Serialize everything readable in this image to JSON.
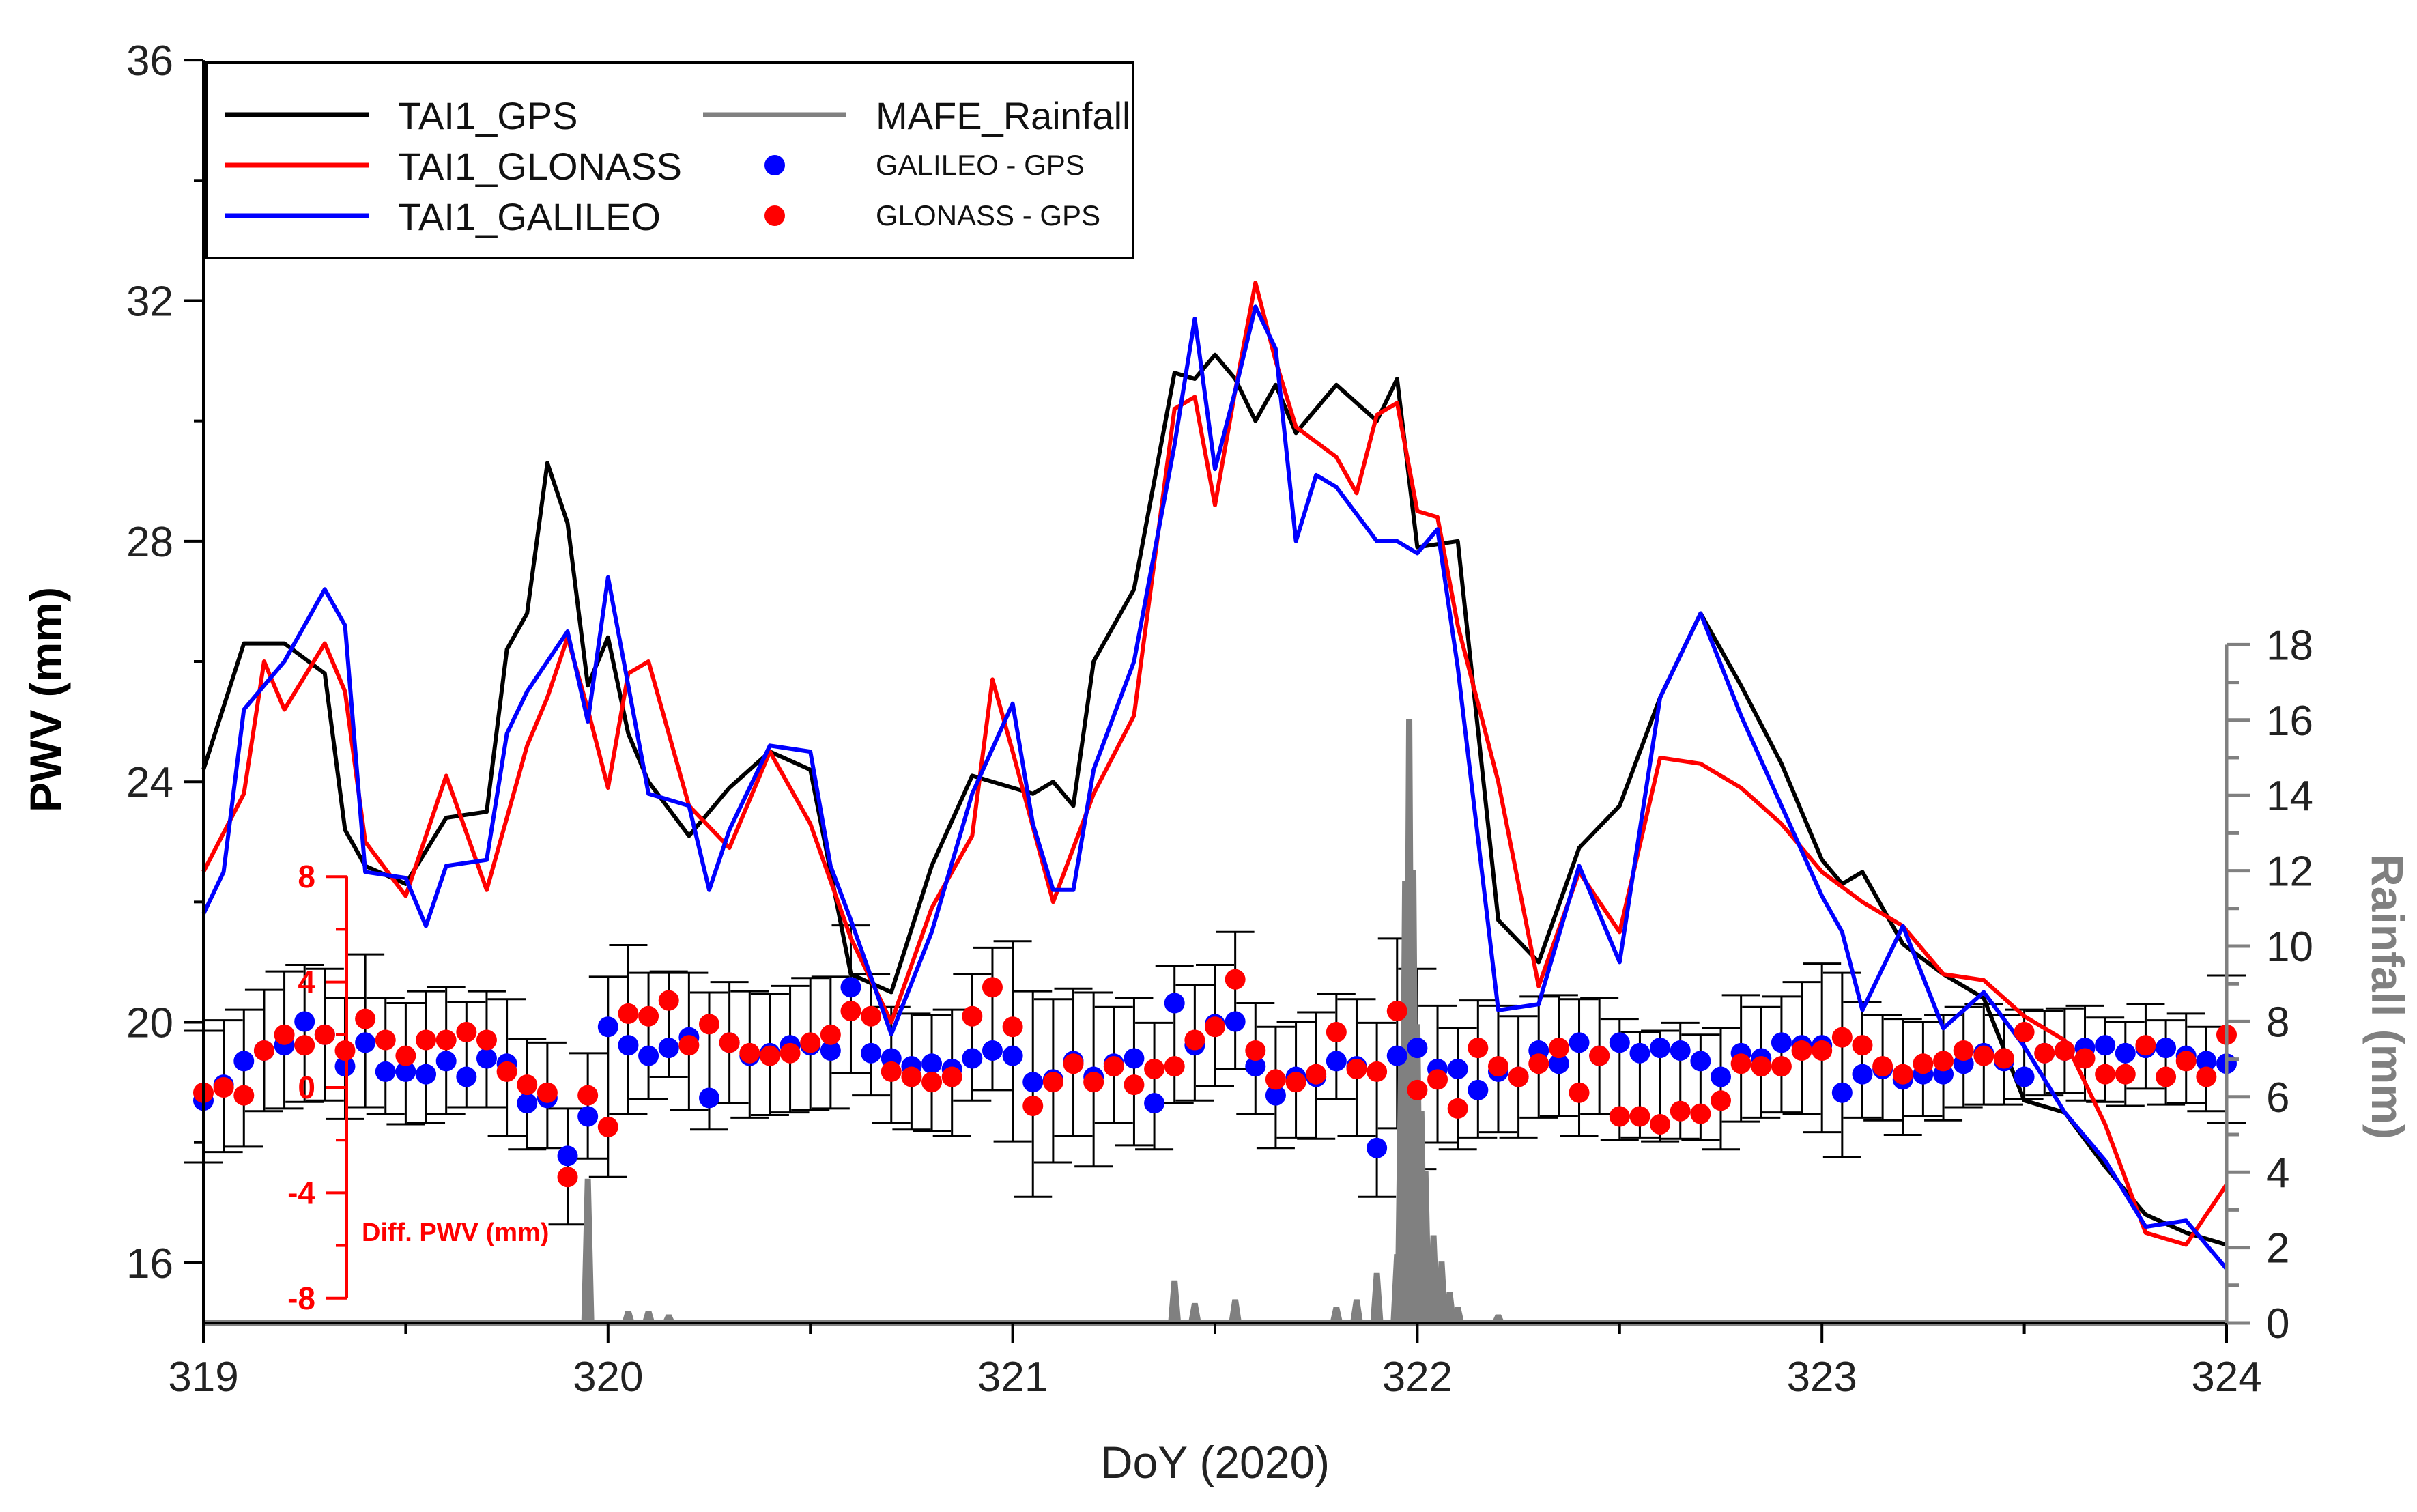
{
  "chart_data": {
    "type": "line",
    "xlabel": "DoY (2020)",
    "ylabel": "PWV (mm)",
    "y2label": "Rainfall (mm)",
    "y3label": "Diff. PWV (mm)",
    "xlim": [
      319,
      324
    ],
    "ylim": [
      15,
      36
    ],
    "y2lim": [
      0,
      18
    ],
    "y3range": [
      -8,
      8
    ],
    "x_ticks": [
      319,
      320,
      321,
      322,
      323,
      324
    ],
    "y_ticks": [
      16,
      20,
      24,
      28,
      32,
      36
    ],
    "y2_ticks": [
      0,
      2,
      4,
      6,
      8,
      10,
      12,
      14,
      16,
      18
    ],
    "y3_ticks": [
      -8,
      -4,
      0,
      4,
      8
    ],
    "legend_position": "top-left",
    "colors": {
      "gps": "#000000",
      "glonass": "#ff0000",
      "galileo": "#0000ff",
      "rain": "#808080",
      "diff_gal": "#0000ff",
      "diff_glo": "#ff0000"
    },
    "series": [
      {
        "name": "TAI1_GPS",
        "kind": "line",
        "color": "#000000",
        "x": [
          319.0,
          319.1,
          319.2,
          319.3,
          319.35,
          319.4,
          319.5,
          319.6,
          319.7,
          319.75,
          319.8,
          319.85,
          319.9,
          319.95,
          320.0,
          320.05,
          320.1,
          320.2,
          320.3,
          320.4,
          320.5,
          320.6,
          320.7,
          320.8,
          320.9,
          321.0,
          321.05,
          321.1,
          321.15,
          321.2,
          321.3,
          321.4,
          321.45,
          321.5,
          321.55,
          321.6,
          321.65,
          321.7,
          321.8,
          321.9,
          321.95,
          322.0,
          322.1,
          322.2,
          322.3,
          322.4,
          322.5,
          322.6,
          322.7,
          322.8,
          322.9,
          323.0,
          323.05,
          323.1,
          323.2,
          323.3,
          323.4,
          323.5,
          323.6,
          323.7,
          323.8,
          323.9,
          324.0
        ],
        "values": [
          24.2,
          26.3,
          26.3,
          25.8,
          23.2,
          22.6,
          22.3,
          23.4,
          23.5,
          26.2,
          26.8,
          29.3,
          28.3,
          25.6,
          26.4,
          24.8,
          24.0,
          23.1,
          23.9,
          24.5,
          24.2,
          20.8,
          20.5,
          22.6,
          24.1,
          23.9,
          23.8,
          24.0,
          23.6,
          26.0,
          27.2,
          30.8,
          30.7,
          31.1,
          30.7,
          30.0,
          30.6,
          29.8,
          30.6,
          30.0,
          30.7,
          27.9,
          28.0,
          21.7,
          21.0,
          22.9,
          23.6,
          25.4,
          26.8,
          25.6,
          24.3,
          22.7,
          22.3,
          22.5,
          21.3,
          20.8,
          20.4,
          18.7,
          18.5,
          17.6,
          16.8,
          16.5,
          16.3
        ]
      },
      {
        "name": "TAI1_GLONASS",
        "kind": "line",
        "color": "#ff0000",
        "x": [
          319.0,
          319.1,
          319.15,
          319.2,
          319.3,
          319.35,
          319.4,
          319.5,
          319.6,
          319.7,
          319.8,
          319.85,
          319.9,
          319.95,
          320.0,
          320.05,
          320.1,
          320.2,
          320.3,
          320.4,
          320.5,
          320.6,
          320.7,
          320.8,
          320.9,
          320.95,
          321.0,
          321.1,
          321.2,
          321.3,
          321.4,
          321.45,
          321.5,
          321.55,
          321.6,
          321.65,
          321.7,
          321.8,
          321.85,
          321.9,
          321.95,
          322.0,
          322.05,
          322.1,
          322.2,
          322.3,
          322.4,
          322.5,
          322.6,
          322.7,
          322.8,
          322.9,
          323.0,
          323.1,
          323.2,
          323.3,
          323.4,
          323.5,
          323.6,
          323.7,
          323.8,
          323.9,
          324.0
        ],
        "values": [
          22.5,
          23.8,
          26.0,
          25.2,
          26.3,
          25.5,
          23.0,
          22.1,
          24.1,
          22.2,
          24.6,
          25.4,
          26.4,
          25.2,
          23.9,
          25.8,
          26.0,
          23.6,
          22.9,
          24.5,
          23.3,
          21.4,
          20.0,
          21.9,
          23.1,
          25.7,
          24.5,
          22.0,
          23.8,
          25.1,
          30.2,
          30.4,
          28.6,
          30.5,
          32.3,
          31.0,
          29.9,
          29.4,
          28.8,
          30.1,
          30.3,
          28.5,
          28.4,
          26.6,
          24.0,
          20.6,
          22.5,
          21.5,
          24.4,
          24.3,
          23.9,
          23.3,
          22.5,
          22.0,
          21.6,
          20.8,
          20.7,
          20.1,
          19.7,
          18.3,
          16.5,
          16.3,
          17.3
        ]
      },
      {
        "name": "TAI1_GALILEO",
        "kind": "line",
        "color": "#0000ff",
        "x": [
          319.0,
          319.05,
          319.1,
          319.2,
          319.3,
          319.35,
          319.4,
          319.5,
          319.55,
          319.6,
          319.7,
          319.75,
          319.8,
          319.9,
          319.95,
          320.0,
          320.05,
          320.1,
          320.2,
          320.25,
          320.3,
          320.4,
          320.5,
          320.55,
          320.6,
          320.7,
          320.8,
          320.9,
          321.0,
          321.05,
          321.1,
          321.15,
          321.2,
          321.3,
          321.4,
          321.45,
          321.5,
          321.55,
          321.6,
          321.65,
          321.7,
          321.75,
          321.8,
          321.9,
          321.95,
          322.0,
          322.05,
          322.1,
          322.2,
          322.3,
          322.4,
          322.5,
          322.6,
          322.7,
          322.8,
          322.9,
          323.0,
          323.05,
          323.1,
          323.2,
          323.3,
          323.4,
          323.5,
          323.6,
          323.7,
          323.8,
          323.9,
          324.0
        ],
        "values": [
          21.8,
          22.5,
          25.2,
          26.0,
          27.2,
          26.6,
          22.5,
          22.4,
          21.6,
          22.6,
          22.7,
          24.8,
          25.5,
          26.5,
          25.0,
          27.4,
          25.6,
          23.8,
          23.6,
          22.2,
          23.2,
          24.6,
          24.5,
          22.6,
          21.7,
          19.8,
          21.5,
          23.8,
          25.3,
          23.3,
          22.2,
          22.2,
          24.2,
          26.0,
          29.6,
          31.7,
          29.2,
          30.5,
          31.9,
          31.2,
          28.0,
          29.1,
          28.9,
          28.0,
          28.0,
          27.8,
          28.2,
          25.9,
          20.2,
          20.3,
          22.6,
          21.0,
          25.4,
          26.8,
          25.1,
          23.6,
          22.1,
          21.5,
          20.2,
          21.6,
          19.9,
          20.5,
          19.6,
          18.5,
          17.7,
          16.6,
          16.7,
          15.9
        ]
      },
      {
        "name": "MAFE_Rainfall",
        "kind": "bar",
        "color": "#808080",
        "axis": "y2",
        "x": [
          319.95,
          320.05,
          320.1,
          320.15,
          321.4,
          321.45,
          321.55,
          321.8,
          321.85,
          321.9,
          321.95,
          321.96,
          321.97,
          321.98,
          321.99,
          322.0,
          322.01,
          322.02,
          322.04,
          322.06,
          322.08,
          322.1,
          322.2
        ],
        "values": [
          3.8,
          0.3,
          0.3,
          0.2,
          1.1,
          0.5,
          0.6,
          0.4,
          0.6,
          1.3,
          1.8,
          6.8,
          11.7,
          16.0,
          12.0,
          7.9,
          5.6,
          4.0,
          2.3,
          1.6,
          0.8,
          0.4,
          0.2
        ]
      },
      {
        "name": "GALILEO - GPS",
        "kind": "scatter",
        "color": "#0000ff",
        "axis": "y3",
        "x": [
          319.0,
          319.05,
          319.1,
          319.15,
          319.2,
          319.25,
          319.3,
          319.35,
          319.4,
          319.45,
          319.5,
          319.55,
          319.6,
          319.65,
          319.7,
          319.75,
          319.8,
          319.85,
          319.9,
          319.95,
          320.0,
          320.05,
          320.1,
          320.15,
          320.2,
          320.25,
          320.3,
          320.35,
          320.4,
          320.45,
          320.5,
          320.55,
          320.6,
          320.65,
          320.7,
          320.75,
          320.8,
          320.85,
          320.9,
          320.95,
          321.0,
          321.05,
          321.1,
          321.15,
          321.2,
          321.25,
          321.3,
          321.35,
          321.4,
          321.45,
          321.5,
          321.55,
          321.6,
          321.65,
          321.7,
          321.75,
          321.8,
          321.85,
          321.9,
          321.95,
          322.0,
          322.05,
          322.1,
          322.15,
          322.2,
          322.25,
          322.3,
          322.35,
          322.4,
          322.45,
          322.5,
          322.55,
          322.6,
          322.65,
          322.7,
          322.75,
          322.8,
          322.85,
          322.9,
          322.95,
          323.0,
          323.05,
          323.1,
          323.15,
          323.2,
          323.25,
          323.3,
          323.35,
          323.4,
          323.45,
          323.5,
          323.55,
          323.6,
          323.65,
          323.7,
          323.75,
          323.8,
          323.85,
          323.9,
          323.95,
          324.0
        ],
        "values": [
          -0.5,
          0.1,
          1.0,
          1.4,
          1.6,
          2.5,
          2.0,
          0.8,
          1.7,
          0.6,
          0.6,
          0.5,
          1.0,
          0.4,
          1.1,
          0.9,
          -0.6,
          -0.4,
          -2.6,
          -1.1,
          2.3,
          1.6,
          1.2,
          1.5,
          1.9,
          -0.4,
          1.7,
          1.2,
          1.3,
          1.6,
          1.6,
          1.4,
          3.8,
          1.3,
          1.1,
          0.8,
          0.9,
          0.7,
          1.1,
          1.4,
          1.2,
          0.2,
          0.3,
          1.0,
          0.4,
          0.9,
          1.1,
          -0.6,
          3.2,
          1.6,
          2.4,
          2.5,
          0.8,
          -0.3,
          0.4,
          0.4,
          1.0,
          0.8,
          -2.3,
          1.2,
          1.5,
          0.7,
          0.7,
          -0.1,
          0.6,
          0.4,
          1.4,
          0.9,
          1.7,
          1.2,
          1.7,
          1.3,
          1.5,
          1.4,
          1.0,
          0.4,
          1.3,
          1.1,
          1.7,
          1.6,
          1.6,
          -0.2,
          0.5,
          0.7,
          0.3,
          0.5,
          0.5,
          0.9,
          1.3,
          1.0,
          0.4,
          1.3,
          1.4,
          1.5,
          1.6,
          1.3,
          1.5,
          1.5,
          1.2,
          1.0,
          0.9
        ]
      },
      {
        "name": "GLONASS - GPS",
        "kind": "scatter",
        "color": "#ff0000",
        "axis": "y3",
        "x": [
          319.0,
          319.05,
          319.1,
          319.15,
          319.2,
          319.25,
          319.3,
          319.35,
          319.4,
          319.45,
          319.5,
          319.55,
          319.6,
          319.65,
          319.7,
          319.75,
          319.8,
          319.85,
          319.9,
          319.95,
          320.0,
          320.05,
          320.1,
          320.15,
          320.2,
          320.25,
          320.3,
          320.35,
          320.4,
          320.45,
          320.5,
          320.55,
          320.6,
          320.65,
          320.7,
          320.75,
          320.8,
          320.85,
          320.9,
          320.95,
          321.0,
          321.05,
          321.1,
          321.15,
          321.2,
          321.25,
          321.3,
          321.35,
          321.4,
          321.45,
          321.5,
          321.55,
          321.6,
          321.65,
          321.7,
          321.75,
          321.8,
          321.85,
          321.9,
          321.95,
          322.0,
          322.05,
          322.1,
          322.15,
          322.2,
          322.25,
          322.3,
          322.35,
          322.4,
          322.45,
          322.5,
          322.55,
          322.6,
          322.65,
          322.7,
          322.75,
          322.8,
          322.85,
          322.9,
          322.95,
          323.0,
          323.05,
          323.1,
          323.15,
          323.2,
          323.25,
          323.3,
          323.35,
          323.4,
          323.45,
          323.5,
          323.55,
          323.6,
          323.65,
          323.7,
          323.75,
          323.8,
          323.85,
          323.9,
          323.95,
          324.0
        ],
        "values": [
          -0.2,
          0.0,
          -0.3,
          1.4,
          2.0,
          1.6,
          2.0,
          1.4,
          2.6,
          1.8,
          1.2,
          1.8,
          1.8,
          2.1,
          1.8,
          0.6,
          0.1,
          -0.2,
          -3.4,
          -0.3,
          -1.5,
          2.8,
          2.7,
          3.3,
          1.6,
          2.4,
          1.7,
          1.3,
          1.2,
          1.3,
          1.7,
          2.0,
          2.9,
          2.7,
          0.6,
          0.4,
          0.2,
          0.4,
          2.7,
          3.8,
          2.3,
          -0.7,
          0.2,
          0.9,
          0.2,
          0.8,
          0.1,
          0.7,
          0.8,
          1.8,
          2.3,
          4.1,
          1.4,
          0.3,
          0.2,
          0.5,
          2.1,
          0.7,
          0.6,
          2.9,
          -0.1,
          0.3,
          -0.8,
          1.5,
          0.8,
          0.4,
          0.9,
          1.5,
          -0.2,
          1.2,
          -1.1,
          -1.1,
          -1.4,
          -0.9,
          -1.0,
          -0.5,
          0.9,
          0.8,
          0.8,
          1.4,
          1.4,
          1.9,
          1.6,
          0.8,
          0.5,
          0.9,
          1.0,
          1.4,
          1.2,
          1.1,
          2.1,
          1.3,
          1.4,
          1.1,
          0.5,
          0.5,
          1.6,
          0.4,
          1.0,
          0.4,
          2.0
        ]
      }
    ],
    "error_bar_half_width": [
      2.5,
      2.5,
      2.6,
      2.3,
      2.6,
      2.6,
      2.5,
      2.3,
      2.9,
      2.2,
      2.3,
      2.5,
      2.4,
      2.0,
      2.2,
      2.6,
      2.1,
      2.0,
      2.2,
      2.0,
      3.8,
      3.2,
      2.4,
      2.0,
      2.6,
      2.6,
      2.3,
      2.4,
      2.3,
      2.4,
      2.5,
      2.5,
      2.8,
      2.3,
      2.2,
      2.2,
      2.2,
      2.4,
      2.4,
      2.7,
      3.8,
      3.9,
      3.1,
      2.8,
      3.3,
      2.2,
      2.8,
      2.4,
      2.6,
      2.2,
      2.3,
      2.6,
      2.1,
      2.3,
      2.2,
      2.4,
      2.0,
      2.6,
      3.3,
      3.6,
      3.8,
      2.6,
      2.3,
      2.6,
      2.4,
      2.3,
      2.3,
      2.3,
      2.6,
      2.2,
      2.3,
      2.0,
      2.1,
      2.2,
      2.0,
      2.3,
      2.4,
      2.1,
      2.2,
      2.5,
      3.2,
      3.5,
      2.2,
      2.0,
      2.2,
      1.8,
      2.0,
      1.9,
      1.9,
      1.7,
      1.7,
      1.6,
      1.6,
      1.8,
      1.6,
      1.6,
      1.6,
      1.6,
      1.7,
      1.6,
      2.8
    ],
    "legend": [
      {
        "label": "TAI1_GPS",
        "marker": "line",
        "color": "#000000"
      },
      {
        "label": "TAI1_GLONASS",
        "marker": "line",
        "color": "#ff0000"
      },
      {
        "label": "TAI1_GALILEO",
        "marker": "line",
        "color": "#0000ff"
      },
      {
        "label": "MAFE_Rainfall",
        "marker": "line",
        "color": "#808080"
      },
      {
        "label": "GALILEO - GPS",
        "marker": "dot",
        "color": "#0000ff"
      },
      {
        "label": "GLONASS - GPS",
        "marker": "dot",
        "color": "#ff0000"
      }
    ]
  }
}
